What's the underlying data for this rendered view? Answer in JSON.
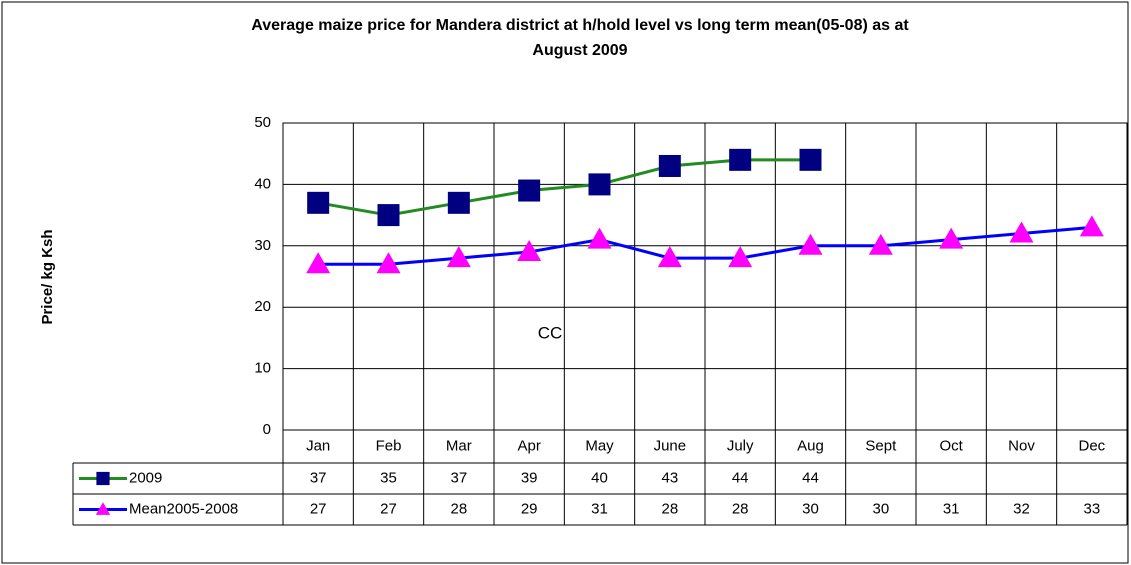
{
  "chart_data": {
    "type": "line",
    "title": "Average maize price for Mandera district at h/hold level vs long term mean(05-08) as at",
    "subtitle": "August 2009",
    "y_label": "Price/ kg Ksh",
    "annotation": "CC",
    "categories": [
      "Jan",
      "Feb",
      "Mar",
      "Apr",
      "May",
      "June",
      "July",
      "Aug",
      "Sept",
      "Oct",
      "Nov",
      "Dec"
    ],
    "series": [
      {
        "name": "2009",
        "color": "#228b22",
        "marker": "square",
        "marker_color": "#000080",
        "values": [
          37,
          35,
          37,
          39,
          40,
          43,
          44,
          44,
          null,
          null,
          null,
          null
        ]
      },
      {
        "name": "Mean2005-2008",
        "color": "#0000ff",
        "marker": "triangle",
        "marker_color": "#ff00ff",
        "values": [
          27,
          27,
          28,
          29,
          31,
          28,
          28,
          30,
          30,
          31,
          32,
          33
        ]
      }
    ],
    "ylim": [
      0,
      50
    ],
    "yticks": [
      0,
      10,
      20,
      30,
      40,
      50
    ],
    "grid": true,
    "data_table": true
  }
}
